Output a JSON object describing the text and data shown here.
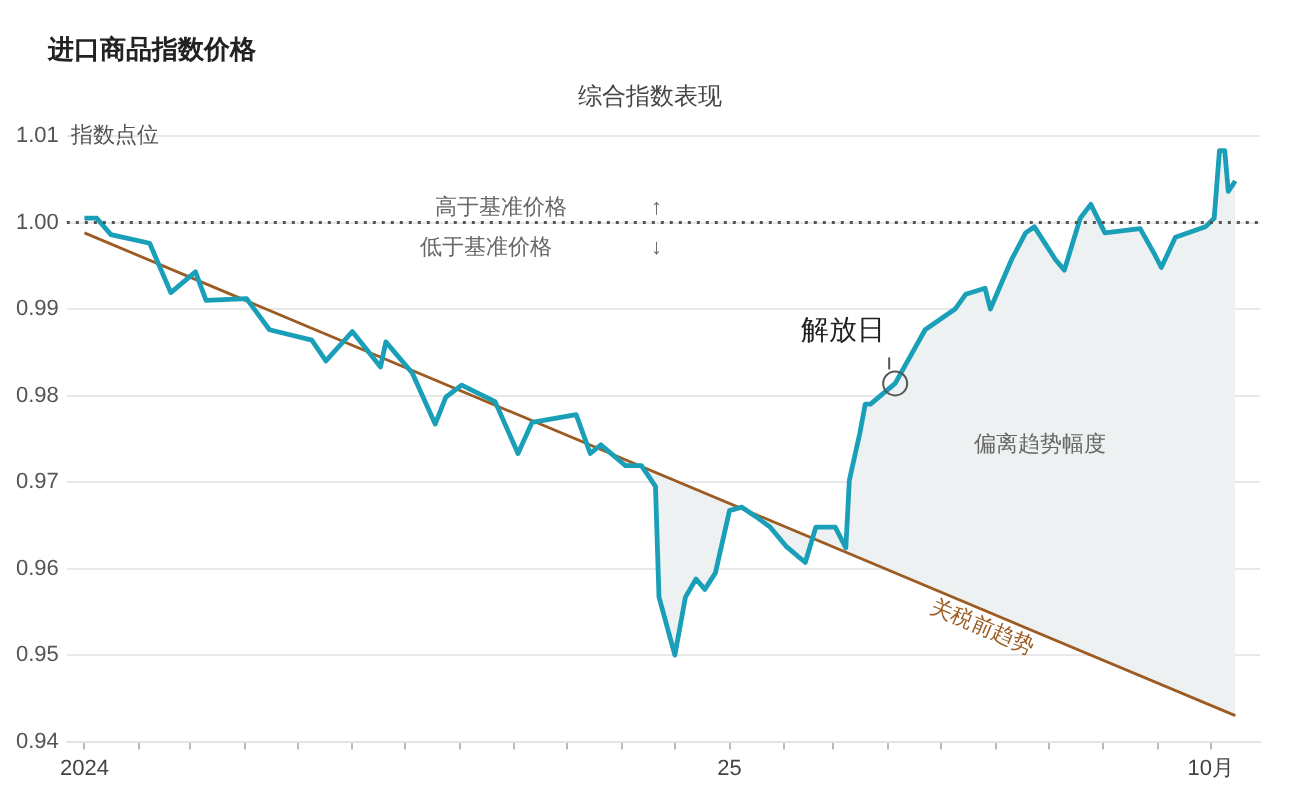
{
  "chart_data": {
    "type": "line",
    "title": "进口商品指数价格",
    "subtitle": "综合指数表现",
    "ylabel": "指数点位",
    "xlim": [
      "2023-12-22",
      "2025-10-29"
    ],
    "xticks": [
      {
        "value": "2024-01-01",
        "label": "2024"
      },
      {
        "value": "2024-02-01",
        "label": null
      },
      {
        "value": "2024-03-01",
        "label": null
      },
      {
        "value": "2024-04-01",
        "label": null
      },
      {
        "value": "2024-05-01",
        "label": null
      },
      {
        "value": "2024-06-01",
        "label": null
      },
      {
        "value": "2024-07-01",
        "label": null
      },
      {
        "value": "2024-08-01",
        "label": null
      },
      {
        "value": "2024-09-01",
        "label": null
      },
      {
        "value": "2024-10-01",
        "label": null
      },
      {
        "value": "2024-11-01",
        "label": null
      },
      {
        "value": "2024-12-01",
        "label": null
      },
      {
        "value": "2025-01-01",
        "label": "25"
      },
      {
        "value": "2025-02-01",
        "label": null
      },
      {
        "value": "2025-03-01",
        "label": null
      },
      {
        "value": "2025-04-01",
        "label": null
      },
      {
        "value": "2025-05-01",
        "label": null
      },
      {
        "value": "2025-06-01",
        "label": null
      },
      {
        "value": "2025-07-01",
        "label": null
      },
      {
        "value": "2025-08-01",
        "label": null
      },
      {
        "value": "2025-09-01",
        "label": null
      },
      {
        "value": "2025-10-01",
        "label": "10月"
      }
    ],
    "ylim": [
      0.94,
      1.01
    ],
    "yticks": [
      0.94,
      0.95,
      0.96,
      0.97,
      0.98,
      0.99,
      {
        "value": 1,
        "label": "1.00"
      },
      1.01
    ],
    "grid": "y",
    "legend": false,
    "marker": "none",
    "ref_lines": [
      {
        "axis": "y",
        "value": 1,
        "color": "#555555",
        "line_style": "dotted"
      }
    ],
    "series": [
      {
        "color": "#1a9fb8",
        "line_style": "solid",
        "x": [
          "2024-01-01",
          "2024-01-08",
          "2024-01-16",
          "2024-02-07",
          "2024-02-19",
          "2024-03-04",
          "2024-03-10",
          "2024-04-02",
          "2024-04-15",
          "2024-05-09",
          "2024-05-17",
          "2024-06-01",
          "2024-06-17",
          "2024-06-20",
          "2024-07-05",
          "2024-07-18",
          "2024-07-24",
          "2024-08-02",
          "2024-08-21",
          "2024-09-03",
          "2024-09-11",
          "2024-10-06",
          "2024-10-14",
          "2024-10-20",
          "2024-11-03",
          "2024-11-12",
          "2024-11-20",
          "2024-11-22",
          "2024-12-01",
          "2024-12-07",
          "2024-12-13",
          "2024-12-18",
          "2024-12-24",
          "2025-01-01",
          "2025-01-08",
          "2025-01-16",
          "2025-01-24",
          "2025-02-02",
          "2025-02-13",
          "2025-02-19",
          "2025-03-02",
          "2025-03-08",
          "2025-03-10",
          "2025-03-16",
          "2025-03-19",
          "2025-03-22",
          "2025-04-05",
          "2025-04-22",
          "2025-05-09",
          "2025-05-15",
          "2025-05-26",
          "2025-05-29",
          "2025-06-10",
          "2025-06-18",
          "2025-06-23",
          "2025-07-05",
          "2025-07-10",
          "2025-07-19",
          "2025-07-25",
          "2025-08-02",
          "2025-08-22",
          "2025-08-30",
          "2025-09-03",
          "2025-09-11",
          "2025-09-28",
          "2025-10-03",
          "2025-10-06",
          "2025-10-09",
          "2025-10-11",
          "2025-10-15"
        ],
        "values": [
          1.0005,
          1.0005,
          0.9986,
          0.9976,
          0.9919,
          0.9943,
          0.991,
          0.9912,
          0.9876,
          0.9864,
          0.984,
          0.9874,
          0.9833,
          0.9862,
          0.9826,
          0.9767,
          0.9798,
          0.9812,
          0.9793,
          0.9733,
          0.9769,
          0.9778,
          0.9733,
          0.9743,
          0.9719,
          0.9719,
          0.9695,
          0.9567,
          0.95,
          0.9567,
          0.9588,
          0.9576,
          0.9595,
          0.9667,
          0.9671,
          0.966,
          0.9648,
          0.9626,
          0.9607,
          0.9648,
          0.9648,
          0.9624,
          0.9702,
          0.9757,
          0.979,
          0.979,
          0.9814,
          0.9876,
          0.99,
          0.9917,
          0.9924,
          0.99,
          0.9957,
          0.9988,
          0.9995,
          0.9957,
          0.9945,
          1.0005,
          1.0021,
          0.9988,
          0.9993,
          0.9964,
          0.9948,
          0.9983,
          0.9995,
          1.0005,
          1.0083,
          1.0083,
          1.0036,
          1.0048
        ],
        "lower": [
          null,
          null,
          null,
          null,
          null,
          null,
          null,
          null,
          null,
          null,
          null,
          null,
          null,
          null,
          null,
          null,
          null,
          null,
          null,
          null,
          null,
          null,
          null,
          null,
          0.9726,
          0.9718,
          0.9711,
          0.9709,
          0.9702,
          0.9697,
          0.9691,
          0.9687,
          0.9682,
          0.9675,
          0.9669,
          0.9662,
          0.9656,
          0.9648,
          0.9638,
          0.9633,
          0.9624,
          0.9619,
          0.9617,
          0.9612,
          0.9609,
          0.9607,
          0.9595,
          0.958,
          0.9566,
          0.9561,
          0.9551,
          0.9549,
          0.9539,
          0.9532,
          0.9527,
          0.9517,
          0.9513,
          0.9505,
          0.95,
          0.9493,
          0.9476,
          0.9469,
          0.9466,
          0.9459,
          0.9445,
          0.944,
          0.9438,
          0.9435,
          0.9433,
          0.943
        ],
        "upper": [
          null,
          null,
          null,
          null,
          null,
          null,
          null,
          null,
          null,
          null,
          null,
          null,
          null,
          null,
          null,
          null,
          null,
          null,
          null,
          null,
          null,
          null,
          null,
          null,
          0.9719,
          0.9719,
          0.9695,
          0.9567,
          0.95,
          0.9567,
          0.9588,
          0.9576,
          0.9595,
          0.9667,
          0.9671,
          0.966,
          0.9648,
          0.9626,
          0.9607,
          0.9648,
          0.9648,
          0.9624,
          0.9702,
          0.9757,
          0.979,
          0.979,
          0.9814,
          0.9876,
          0.99,
          0.9917,
          0.9924,
          0.99,
          0.9957,
          0.9988,
          0.9995,
          0.9957,
          0.9945,
          1.0005,
          1.0021,
          0.9988,
          0.9993,
          0.9964,
          0.9948,
          0.9983,
          0.9995,
          1.0005,
          1.0083,
          1.0083,
          1.0036,
          1.0048
        ]
      },
      {
        "name": "关税前趋势",
        "color": "#9c5b22",
        "line_style": "solid",
        "x": [
          "2024-01-01",
          "2025-10-15"
        ],
        "values": [
          0.9988,
          0.943
        ]
      }
    ],
    "annotations": [
      "高于基准价格",
      "↑",
      "低于基准价格",
      "↓",
      {
        "text": "解放日",
        "x": "2025-04-05",
        "y": 0.9814
      },
      "偏离趋势幅度"
    ]
  }
}
